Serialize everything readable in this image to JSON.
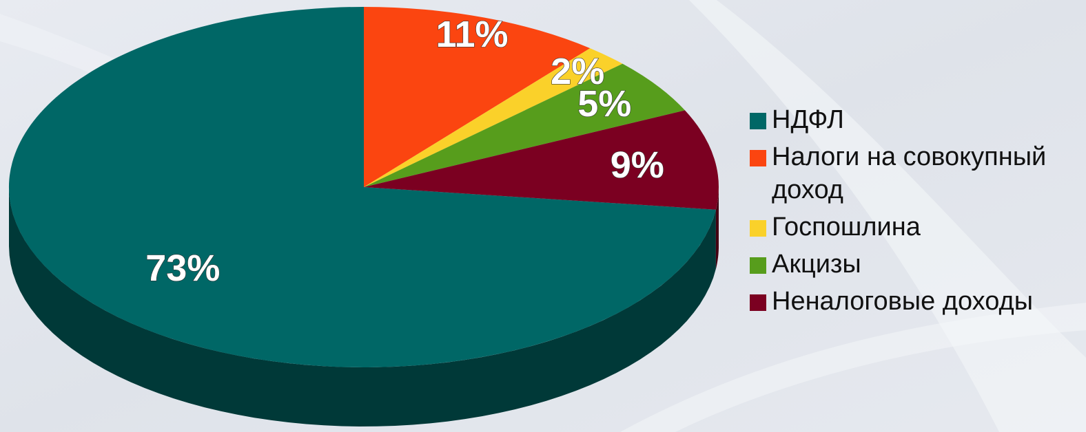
{
  "chart_data": {
    "type": "pie",
    "categories": [
      "НДФЛ",
      "Налоги на совокупный доход",
      "Госпошлина",
      "Акцизы",
      "Неналоговые доходы"
    ],
    "values": [
      73,
      11,
      2,
      5,
      9
    ],
    "labels": [
      "73%",
      "11%",
      "2%",
      "5%",
      "9%"
    ],
    "colors": [
      "#006766",
      "#fb4510",
      "#fad12a",
      "#579d1c",
      "#7b0021"
    ],
    "legend_position": "right",
    "three_d": true
  },
  "legend": {
    "items": [
      {
        "label": "НДФЛ",
        "color": "#006766"
      },
      {
        "label": "Налоги на совокупный доход",
        "color": "#fb4510"
      },
      {
        "label": "Госпошлина",
        "color": "#fad12a"
      },
      {
        "label": "Акцизы",
        "color": "#579d1c"
      },
      {
        "label": "Неналоговые доходы",
        "color": "#7b0021"
      }
    ]
  }
}
